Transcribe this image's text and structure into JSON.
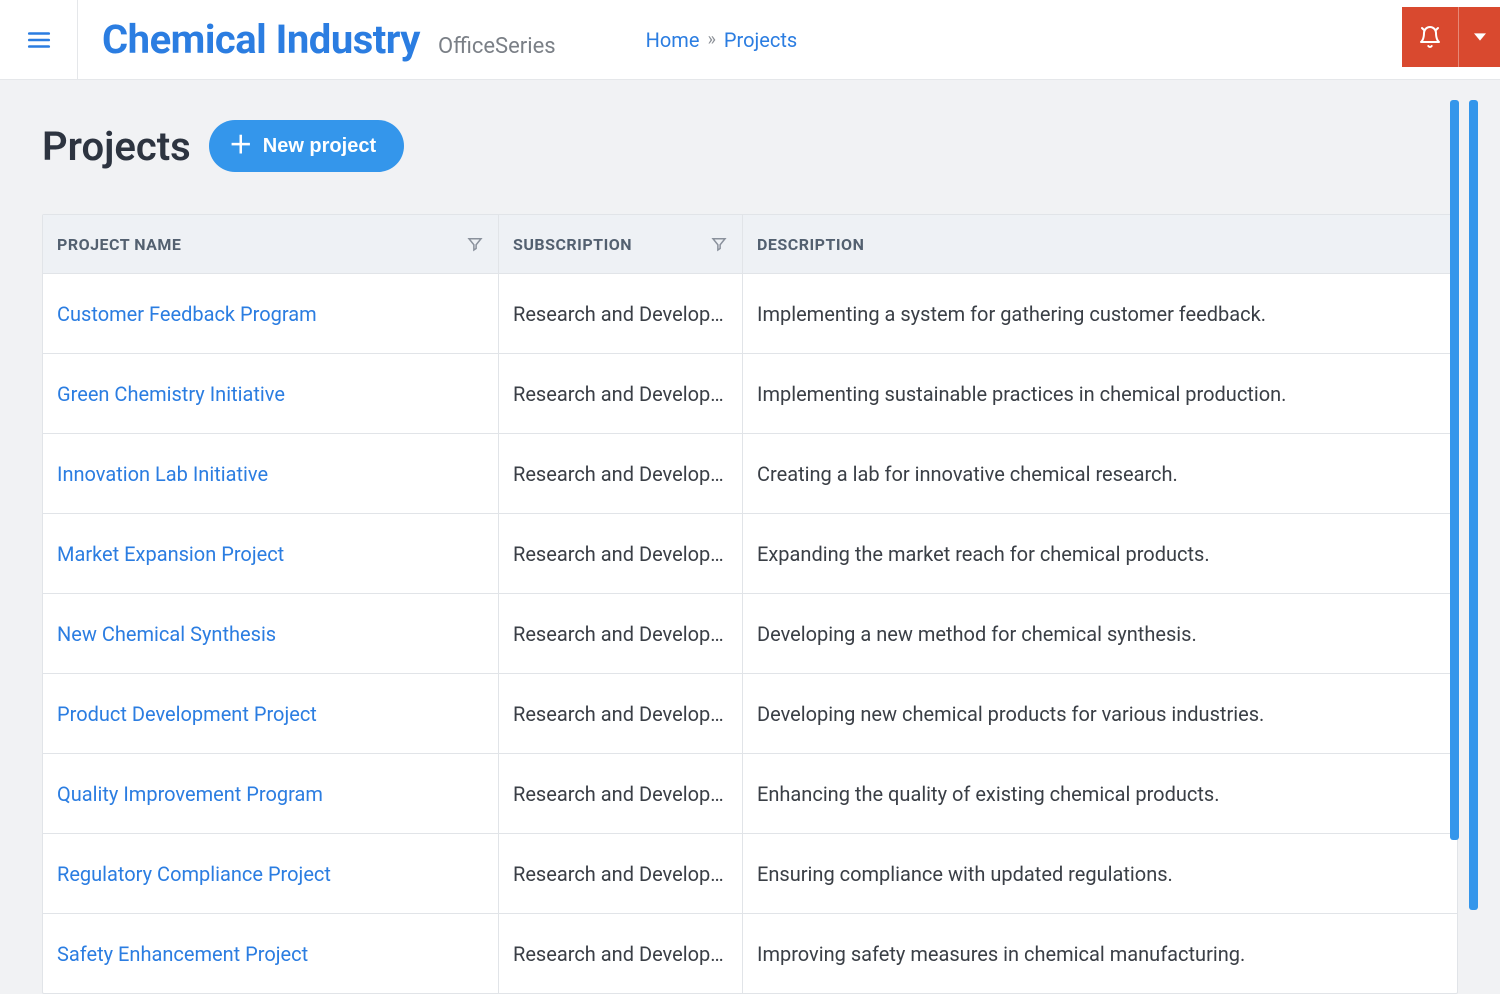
{
  "header": {
    "brand_title": "Chemical Industry",
    "brand_sub": "OfficeSeries",
    "breadcrumb": {
      "home": "Home",
      "current": "Projects"
    }
  },
  "page": {
    "title": "Projects",
    "new_button": "New project"
  },
  "table": {
    "columns": {
      "name": "PROJECT NAME",
      "subscription": "SUBSCRIPTION",
      "description": "DESCRIPTION"
    },
    "rows": [
      {
        "name": "Customer Feedback Program",
        "subscription": "Research and Develop…",
        "description": "Implementing a system for gathering customer feedback."
      },
      {
        "name": "Green Chemistry Initiative",
        "subscription": "Research and Develop…",
        "description": "Implementing sustainable practices in chemical production."
      },
      {
        "name": "Innovation Lab Initiative",
        "subscription": "Research and Develop…",
        "description": "Creating a lab for innovative chemical research."
      },
      {
        "name": "Market Expansion Project",
        "subscription": "Research and Develop…",
        "description": "Expanding the market reach for chemical products."
      },
      {
        "name": "New Chemical Synthesis",
        "subscription": "Research and Develop…",
        "description": "Developing a new method for chemical synthesis."
      },
      {
        "name": "Product Development Project",
        "subscription": "Research and Develop…",
        "description": "Developing new chemical products for various industries."
      },
      {
        "name": "Quality Improvement Program",
        "subscription": "Research and Develop…",
        "description": "Enhancing the quality of existing chemical products."
      },
      {
        "name": "Regulatory Compliance Project",
        "subscription": "Research and Develop…",
        "description": "Ensuring compliance with updated regulations."
      },
      {
        "name": "Safety Enhancement Project",
        "subscription": "Research and Develop…",
        "description": "Improving safety measures in chemical manufacturing."
      }
    ]
  },
  "colors": {
    "primary": "#2b7de1",
    "button": "#3496eb",
    "danger": "#d9492f",
    "pageBg": "#f1f2f4",
    "headerBg": "#eef1f5",
    "border": "#e1e4e8",
    "textMuted": "#7a7f86",
    "textBody": "#3a3f46"
  }
}
